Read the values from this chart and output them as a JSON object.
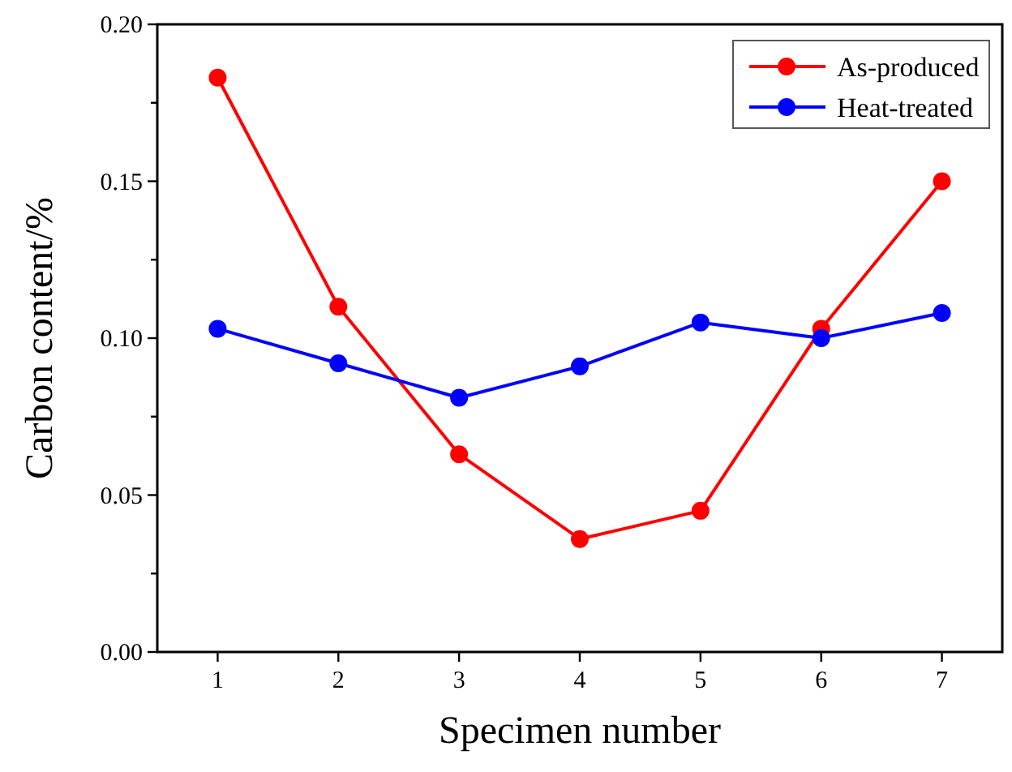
{
  "chart_data": {
    "type": "line",
    "xlabel": "Specimen number",
    "ylabel": "Carbon content/%",
    "x": [
      1,
      2,
      3,
      4,
      5,
      6,
      7
    ],
    "series": [
      {
        "name": "As-produced",
        "color": "#ff0000",
        "values": [
          0.183,
          0.11,
          0.063,
          0.036,
          0.045,
          0.103,
          0.15
        ]
      },
      {
        "name": "Heat-treated",
        "color": "#0000ff",
        "values": [
          0.103,
          0.092,
          0.081,
          0.091,
          0.105,
          0.1,
          0.108
        ]
      }
    ],
    "xlim": [
      0.5,
      7.5
    ],
    "xticks": [
      1,
      2,
      3,
      4,
      5,
      6,
      7
    ],
    "ylim": [
      0,
      0.2
    ],
    "yticks": [
      {
        "value": 0,
        "label": "0.00"
      },
      {
        "value": 0.025,
        "label": null
      },
      {
        "value": 0.05,
        "label": "0.05"
      },
      {
        "value": 0.075,
        "label": null
      },
      {
        "value": 0.1,
        "label": "0.10"
      },
      {
        "value": 0.125,
        "label": null
      },
      {
        "value": 0.15,
        "label": "0.15"
      },
      {
        "value": 0.175,
        "label": null
      },
      {
        "value": 0.2,
        "label": "0.20"
      }
    ],
    "grid": false,
    "legend": "top right",
    "marker": "circle",
    "line_style": "solid"
  }
}
